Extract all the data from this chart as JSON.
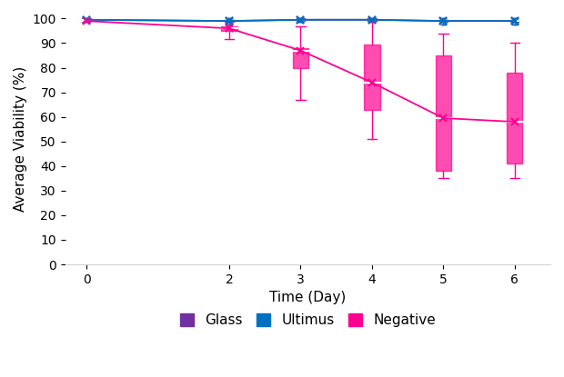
{
  "title": "",
  "xlabel": "Time (Day)",
  "ylabel": "Average Viability (%)",
  "xlim": [
    -0.3,
    6.5
  ],
  "ylim": [
    0,
    102
  ],
  "yticks": [
    0,
    10,
    20,
    30,
    40,
    50,
    60,
    70,
    80,
    90,
    100
  ],
  "xticks": [
    0,
    2,
    3,
    4,
    5,
    6
  ],
  "days": [
    0,
    2,
    3,
    4,
    5,
    6
  ],
  "glass_mean": [
    99.5,
    99.0,
    99.5,
    99.5,
    99.0,
    99.0
  ],
  "glass_q1": [
    99.0,
    98.5,
    99.0,
    99.0,
    98.5,
    98.5
  ],
  "glass_q3": [
    100,
    99.5,
    100,
    100,
    99.5,
    99.5
  ],
  "glass_wlo": [
    98.5,
    97.5,
    98.5,
    98.5,
    97.5,
    97.5
  ],
  "glass_whi": [
    100,
    100,
    100,
    100,
    100,
    100
  ],
  "ultimus_mean": [
    99.5,
    99.0,
    99.5,
    99.5,
    99.0,
    99.0
  ],
  "ultimus_q1": [
    99.0,
    98.5,
    99.0,
    99.0,
    98.5,
    98.5
  ],
  "ultimus_q3": [
    100,
    99.5,
    100,
    100,
    99.5,
    99.5
  ],
  "ultimus_wlo": [
    98.5,
    97.5,
    98.5,
    98.5,
    97.5,
    97.5
  ],
  "ultimus_whi": [
    100,
    100,
    100,
    100,
    100,
    100
  ],
  "neg_mean": [
    99.0,
    96.0,
    87.0,
    74.0,
    59.5,
    58.0
  ],
  "neg_q1": [
    99.0,
    95.0,
    80.0,
    63.0,
    38.0,
    41.0
  ],
  "neg_q3": [
    99.0,
    97.0,
    88.0,
    89.5,
    85.0,
    78.0
  ],
  "neg_wlo": [
    99.0,
    91.5,
    67.0,
    51.0,
    35.0,
    35.0
  ],
  "neg_whi": [
    99.0,
    99.0,
    97.0,
    99.0,
    94.0,
    90.0
  ],
  "glass_color": "#7030A0",
  "ultimus_color": "#0070C0",
  "neg_color": "#FF0090",
  "glass_line_color": "#7030A0",
  "ultimus_line_color": "#4472C4",
  "neg_line_color": "#FF0090",
  "box_width": 0.18,
  "legend_labels": [
    "Glass",
    "Ultimus",
    "Negative"
  ],
  "figsize": [
    6.2,
    4.15
  ],
  "dpi": 100
}
